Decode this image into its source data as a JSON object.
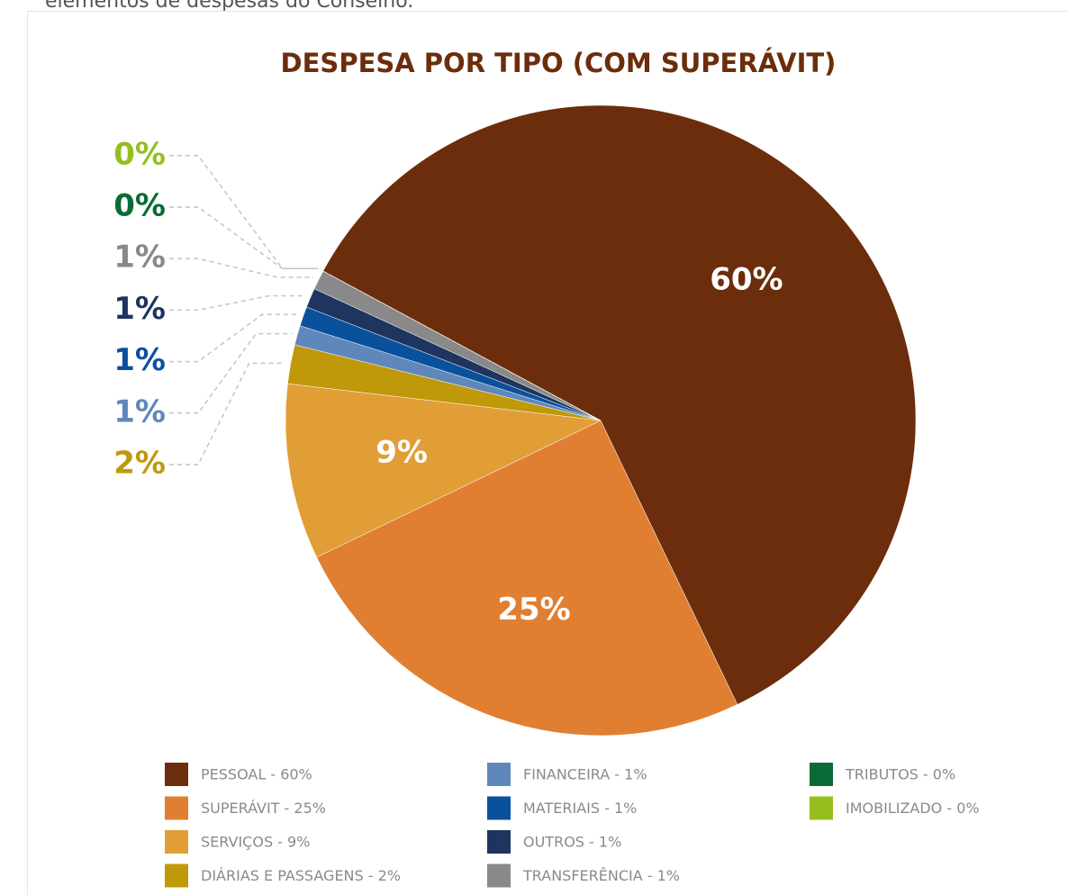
{
  "intro_text": "elementos de despesas do Conselho.",
  "chart_data": {
    "type": "pie",
    "title": "DESPESA POR TIPO (COM SUPERÁVIT)",
    "categories": [
      "PESSOAL - 60%",
      "SUPERÁVIT - 25%",
      "SERVIÇOS - 9%",
      "DIÁRIAS E PASSAGENS - 2%",
      "FINANCEIRA - 1%",
      "MATERIAIS - 1%",
      "OUTROS - 1%",
      "TRANSFERÊNCIA - 1%",
      "TRIBUTOS - 0%",
      "IMOBILIZADO - 0%"
    ],
    "values": [
      60,
      25,
      9,
      2,
      1,
      1,
      1,
      1,
      0,
      0
    ],
    "value_labels": [
      "60%",
      "25%",
      "9%",
      "2%",
      "1%",
      "1%",
      "1%",
      "1%",
      "0%",
      "0%"
    ],
    "colors": [
      "#6b2d0c",
      "#e07f32",
      "#e19e36",
      "#bf990a",
      "#5f87bb",
      "#0a519d",
      "#1d355f",
      "#898989",
      "#0a6b37",
      "#95bf1f"
    ],
    "legend": "bottom"
  }
}
